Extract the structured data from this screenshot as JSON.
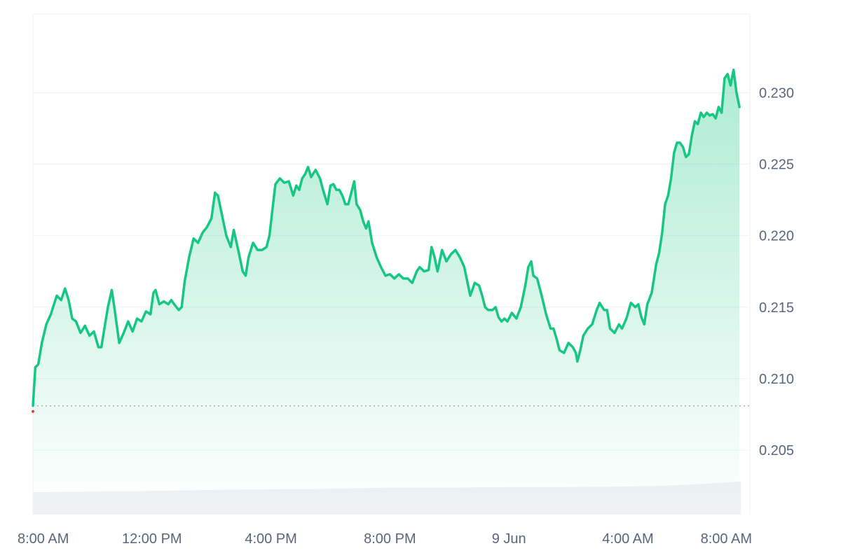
{
  "chart_data": {
    "type": "area",
    "title": "",
    "xlabel": "",
    "ylabel": "",
    "x_ticks": [
      {
        "x": 0,
        "label": "8:00 AM"
      },
      {
        "x": 4,
        "label": "12:00 PM"
      },
      {
        "x": 8,
        "label": "4:00 PM"
      },
      {
        "x": 12,
        "label": "8:00 PM"
      },
      {
        "x": 16,
        "label": "9 Jun"
      },
      {
        "x": 20,
        "label": "4:00 AM"
      },
      {
        "x": 24,
        "label": "8:00 AM"
      }
    ],
    "y_ticks": [
      0.205,
      0.21,
      0.215,
      0.22,
      0.225,
      0.23
    ],
    "y_tick_labels": [
      "0.205",
      "0.210",
      "0.215",
      "0.220",
      "0.225",
      "0.230"
    ],
    "xlim": [
      0,
      24.1
    ],
    "ylim": [
      0.2005,
      0.2355
    ],
    "grid": true,
    "baseline_price": 0.2081,
    "colors": {
      "line": "#16c784",
      "area_top": "#16c784",
      "grid": "#eff2f5",
      "baseline": "#a6b0c3",
      "axis_text": "#58667e",
      "volume": "#eff2f5",
      "start_marker": "#ea3943"
    },
    "series": [
      {
        "values": [
          [
            0.0,
            0.2081
          ],
          [
            0.08,
            0.2108
          ],
          [
            0.18,
            0.211
          ],
          [
            0.3,
            0.2125
          ],
          [
            0.45,
            0.2138
          ],
          [
            0.6,
            0.2145
          ],
          [
            0.8,
            0.2158
          ],
          [
            0.95,
            0.2155
          ],
          [
            1.08,
            0.2163
          ],
          [
            1.2,
            0.2155
          ],
          [
            1.32,
            0.2142
          ],
          [
            1.45,
            0.214
          ],
          [
            1.6,
            0.2132
          ],
          [
            1.75,
            0.2137
          ],
          [
            1.9,
            0.213
          ],
          [
            2.05,
            0.2133
          ],
          [
            2.2,
            0.2122
          ],
          [
            2.3,
            0.2122
          ],
          [
            2.4,
            0.2135
          ],
          [
            2.52,
            0.215
          ],
          [
            2.65,
            0.2162
          ],
          [
            2.75,
            0.2148
          ],
          [
            2.9,
            0.2125
          ],
          [
            3.05,
            0.2132
          ],
          [
            3.2,
            0.214
          ],
          [
            3.35,
            0.2133
          ],
          [
            3.5,
            0.2142
          ],
          [
            3.65,
            0.214
          ],
          [
            3.8,
            0.2147
          ],
          [
            3.95,
            0.2145
          ],
          [
            4.05,
            0.216
          ],
          [
            4.12,
            0.2162
          ],
          [
            4.25,
            0.2152
          ],
          [
            4.4,
            0.2154
          ],
          [
            4.55,
            0.2152
          ],
          [
            4.65,
            0.2155
          ],
          [
            4.75,
            0.2152
          ],
          [
            4.9,
            0.2148
          ],
          [
            5.0,
            0.215
          ],
          [
            5.1,
            0.2168
          ],
          [
            5.25,
            0.2185
          ],
          [
            5.4,
            0.2198
          ],
          [
            5.55,
            0.2195
          ],
          [
            5.7,
            0.2202
          ],
          [
            5.85,
            0.2206
          ],
          [
            6.0,
            0.2212
          ],
          [
            6.12,
            0.223
          ],
          [
            6.22,
            0.2228
          ],
          [
            6.35,
            0.2215
          ],
          [
            6.5,
            0.22
          ],
          [
            6.65,
            0.2192
          ],
          [
            6.75,
            0.2204
          ],
          [
            6.9,
            0.219
          ],
          [
            7.05,
            0.2175
          ],
          [
            7.15,
            0.2172
          ],
          [
            7.25,
            0.2185
          ],
          [
            7.4,
            0.2195
          ],
          [
            7.55,
            0.219
          ],
          [
            7.7,
            0.219
          ],
          [
            7.85,
            0.2192
          ],
          [
            7.95,
            0.22
          ],
          [
            8.05,
            0.2218
          ],
          [
            8.15,
            0.2236
          ],
          [
            8.3,
            0.224
          ],
          [
            8.45,
            0.2237
          ],
          [
            8.6,
            0.2238
          ],
          [
            8.75,
            0.2228
          ],
          [
            8.85,
            0.2235
          ],
          [
            8.95,
            0.2232
          ],
          [
            9.05,
            0.224
          ],
          [
            9.15,
            0.2243
          ],
          [
            9.25,
            0.2248
          ],
          [
            9.35,
            0.2241
          ],
          [
            9.5,
            0.2246
          ],
          [
            9.65,
            0.224
          ],
          [
            9.75,
            0.2232
          ],
          [
            9.9,
            0.2222
          ],
          [
            10.0,
            0.2235
          ],
          [
            10.1,
            0.2236
          ],
          [
            10.2,
            0.2232
          ],
          [
            10.3,
            0.2232
          ],
          [
            10.4,
            0.2228
          ],
          [
            10.5,
            0.2222
          ],
          [
            10.6,
            0.2222
          ],
          [
            10.7,
            0.223
          ],
          [
            10.8,
            0.2238
          ],
          [
            10.88,
            0.2222
          ],
          [
            11.0,
            0.2218
          ],
          [
            11.1,
            0.221
          ],
          [
            11.2,
            0.2205
          ],
          [
            11.28,
            0.221
          ],
          [
            11.4,
            0.2195
          ],
          [
            11.55,
            0.2185
          ],
          [
            11.7,
            0.2178
          ],
          [
            11.85,
            0.2172
          ],
          [
            12.0,
            0.2173
          ],
          [
            12.15,
            0.217
          ],
          [
            12.3,
            0.2173
          ],
          [
            12.45,
            0.217
          ],
          [
            12.6,
            0.217
          ],
          [
            12.75,
            0.2167
          ],
          [
            12.9,
            0.2175
          ],
          [
            13.0,
            0.2178
          ],
          [
            13.15,
            0.2175
          ],
          [
            13.3,
            0.2176
          ],
          [
            13.4,
            0.2192
          ],
          [
            13.5,
            0.2185
          ],
          [
            13.6,
            0.2175
          ],
          [
            13.75,
            0.219
          ],
          [
            13.9,
            0.2182
          ],
          [
            14.05,
            0.2187
          ],
          [
            14.2,
            0.219
          ],
          [
            14.35,
            0.2185
          ],
          [
            14.5,
            0.2178
          ],
          [
            14.6,
            0.2168
          ],
          [
            14.7,
            0.2158
          ],
          [
            14.85,
            0.2167
          ],
          [
            15.0,
            0.2165
          ],
          [
            15.1,
            0.2158
          ],
          [
            15.2,
            0.215
          ],
          [
            15.3,
            0.2148
          ],
          [
            15.45,
            0.2148
          ],
          [
            15.55,
            0.215
          ],
          [
            15.65,
            0.2143
          ],
          [
            15.75,
            0.214
          ],
          [
            15.85,
            0.2142
          ],
          [
            15.95,
            0.214
          ],
          [
            16.1,
            0.2146
          ],
          [
            16.25,
            0.2142
          ],
          [
            16.4,
            0.215
          ],
          [
            16.55,
            0.2165
          ],
          [
            16.65,
            0.2178
          ],
          [
            16.75,
            0.2182
          ],
          [
            16.82,
            0.2172
          ],
          [
            16.95,
            0.217
          ],
          [
            17.1,
            0.2158
          ],
          [
            17.25,
            0.2145
          ],
          [
            17.4,
            0.2135
          ],
          [
            17.5,
            0.2135
          ],
          [
            17.6,
            0.2128
          ],
          [
            17.7,
            0.212
          ],
          [
            17.85,
            0.2118
          ],
          [
            18.0,
            0.2125
          ],
          [
            18.15,
            0.2122
          ],
          [
            18.25,
            0.2118
          ],
          [
            18.3,
            0.2112
          ],
          [
            18.4,
            0.212
          ],
          [
            18.5,
            0.213
          ],
          [
            18.65,
            0.2135
          ],
          [
            18.8,
            0.2138
          ],
          [
            18.95,
            0.2148
          ],
          [
            19.05,
            0.2153
          ],
          [
            19.2,
            0.2148
          ],
          [
            19.3,
            0.2148
          ],
          [
            19.4,
            0.2135
          ],
          [
            19.55,
            0.2132
          ],
          [
            19.7,
            0.2138
          ],
          [
            19.8,
            0.2135
          ],
          [
            19.95,
            0.2142
          ],
          [
            20.1,
            0.2153
          ],
          [
            20.25,
            0.215
          ],
          [
            20.35,
            0.2152
          ],
          [
            20.45,
            0.2143
          ],
          [
            20.55,
            0.2138
          ],
          [
            20.65,
            0.2152
          ],
          [
            20.8,
            0.216
          ],
          [
            20.95,
            0.218
          ],
          [
            21.05,
            0.2188
          ],
          [
            21.15,
            0.2202
          ],
          [
            21.25,
            0.2222
          ],
          [
            21.35,
            0.2228
          ],
          [
            21.45,
            0.224
          ],
          [
            21.55,
            0.2258
          ],
          [
            21.65,
            0.2265
          ],
          [
            21.75,
            0.2265
          ],
          [
            21.85,
            0.2262
          ],
          [
            21.95,
            0.2255
          ],
          [
            22.05,
            0.2257
          ],
          [
            22.15,
            0.227
          ],
          [
            22.25,
            0.228
          ],
          [
            22.35,
            0.2278
          ],
          [
            22.45,
            0.2286
          ],
          [
            22.55,
            0.2283
          ],
          [
            22.65,
            0.2286
          ],
          [
            22.75,
            0.2284
          ],
          [
            22.85,
            0.2285
          ],
          [
            22.95,
            0.2282
          ],
          [
            23.05,
            0.229
          ],
          [
            23.15,
            0.2286
          ],
          [
            23.25,
            0.231
          ],
          [
            23.35,
            0.2313
          ],
          [
            23.45,
            0.2305
          ],
          [
            23.55,
            0.2316
          ],
          [
            23.65,
            0.23
          ],
          [
            23.75,
            0.229
          ]
        ]
      }
    ],
    "volume": {
      "x": [
        0,
        2,
        4,
        6,
        8,
        10,
        12,
        14,
        16,
        18,
        20,
        21.5,
        23,
        23.8
      ],
      "values": [
        0.39,
        0.4,
        0.41,
        0.43,
        0.44,
        0.45,
        0.47,
        0.47,
        0.48,
        0.48,
        0.49,
        0.51,
        0.55,
        0.58
      ],
      "max": 1.0
    }
  }
}
